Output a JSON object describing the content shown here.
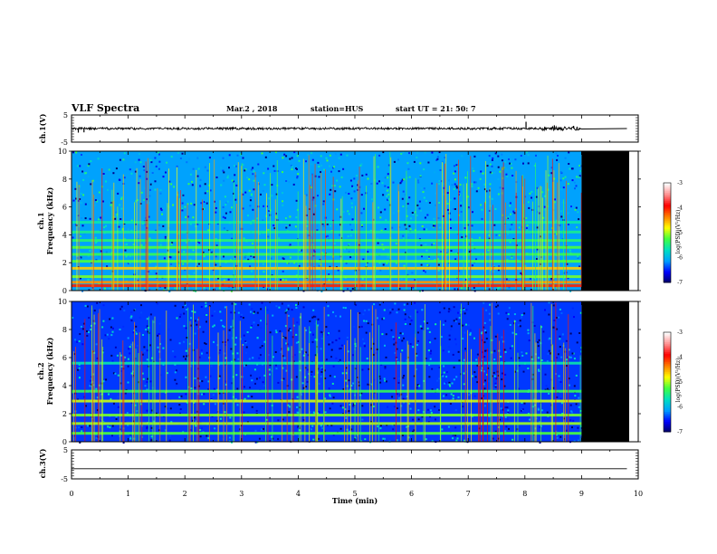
{
  "header": {
    "title": "VLF Spectra",
    "date": "Mar.2  , 2018",
    "station": "station=HUS",
    "start": "start  UT  =   21: 50: 7"
  },
  "colors": {
    "spectrogram_scale": [
      "#000060",
      "#0000ff",
      "#00a0ff",
      "#00e0c0",
      "#40ff40",
      "#ffff00",
      "#ff8000",
      "#ff0000",
      "#ff9090",
      "#ffffff"
    ],
    "no_data": "#000000"
  },
  "chart_data": [
    {
      "type": "line",
      "panel": "ch1-waveform",
      "ylabel": "ch.1(V)",
      "ylim": [
        -5,
        5
      ],
      "y_ticks": [
        "5",
        "-5"
      ],
      "x_range_min": [
        0,
        10
      ],
      "data_end_min": 9.0,
      "baseline": 0,
      "noise_amplitude": 0.4,
      "spikes": [
        {
          "t": 0.12,
          "v": -1.5
        },
        {
          "t": 0.22,
          "v": -1.4
        },
        {
          "t": 8.02,
          "v": 2.5
        },
        {
          "t": 8.52,
          "v": 1.2
        },
        {
          "t": 8.86,
          "v": 1.0
        }
      ]
    },
    {
      "type": "heatmap",
      "panel": "ch1-spectrogram",
      "ylabel_top": "ch.1",
      "ylabel": "Frequency  (kHz)",
      "xlim": [
        0,
        10
      ],
      "ylim": [
        0,
        10
      ],
      "y_ticks": [
        "0",
        "2",
        "4",
        "6",
        "8",
        "10"
      ],
      "data_end_min": 9.0,
      "colorbar": {
        "label": "log(PSD)(V²/Hz)",
        "ticks": [
          "-3",
          "-4",
          "-5",
          "-6",
          "-7"
        ],
        "range": [
          -7,
          -3
        ]
      },
      "bands_khz": [
        {
          "f": 0.35,
          "level": -4.0
        },
        {
          "f": 0.6,
          "level": -4.4
        },
        {
          "f": 1.0,
          "level": -5.1
        },
        {
          "f": 1.6,
          "level": -4.6
        },
        {
          "f": 2.1,
          "level": -5.2
        },
        {
          "f": 2.6,
          "level": -5.3
        },
        {
          "f": 3.1,
          "level": -5.2
        },
        {
          "f": 3.6,
          "level": -5.4
        },
        {
          "f": 4.2,
          "level": -5.5
        },
        {
          "f": 4.9,
          "level": -5.6
        }
      ],
      "background_level": -6.1
    },
    {
      "type": "heatmap",
      "panel": "ch2-spectrogram",
      "ylabel_top": "ch.2",
      "ylabel": "Frequency  (kHz)",
      "xlim": [
        0,
        10
      ],
      "ylim": [
        0,
        10
      ],
      "y_ticks": [
        "0",
        "2",
        "4",
        "6",
        "8",
        "10"
      ],
      "data_end_min": 9.0,
      "colorbar": {
        "label": "log(PSD)(V²/Hz)",
        "ticks": [
          "-3",
          "-4",
          "-5",
          "-6",
          "-7"
        ],
        "range": [
          -7,
          -3
        ]
      },
      "bands_khz": [
        {
          "f": 0.6,
          "level": -5.2
        },
        {
          "f": 1.3,
          "level": -5.0
        },
        {
          "f": 1.9,
          "level": -5.1
        },
        {
          "f": 2.9,
          "level": -4.9
        },
        {
          "f": 3.6,
          "level": -5.3
        },
        {
          "f": 5.6,
          "level": -5.6
        }
      ],
      "background_level": -6.4
    },
    {
      "type": "line",
      "panel": "ch3-waveform",
      "ylabel": "ch.3(V)",
      "ylim": [
        -5,
        5
      ],
      "y_ticks": [
        "5",
        "-5"
      ],
      "x_range_min": [
        0,
        10
      ],
      "baseline": -1.5
    }
  ],
  "x_axis": {
    "label": "Time  (min)",
    "ticks": [
      "0",
      "1",
      "2",
      "3",
      "4",
      "5",
      "6",
      "7",
      "8",
      "9",
      "10"
    ]
  }
}
